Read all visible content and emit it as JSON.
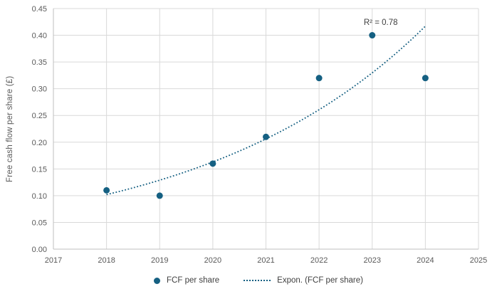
{
  "chart_data": {
    "type": "scatter",
    "title": "",
    "xlabel": "",
    "ylabel": "Free cash flow per share (£)",
    "xlim": [
      2017,
      2025
    ],
    "ylim": [
      0,
      0.45
    ],
    "grid": true,
    "legend_position": "bottom",
    "x_tick_values": [
      2017,
      2018,
      2019,
      2020,
      2021,
      2022,
      2023,
      2024,
      2025
    ],
    "x_tick_labels": [
      "2017",
      "2018",
      "2019",
      "2020",
      "2021",
      "2022",
      "2023",
      "2024",
      "2025"
    ],
    "y_tick_values": [
      0,
      0.05,
      0.1,
      0.15,
      0.2,
      0.25,
      0.3,
      0.35,
      0.4,
      0.45
    ],
    "y_tick_labels": [
      "0.00",
      "0.05",
      "0.10",
      "0.15",
      "0.20",
      "0.25",
      "0.30",
      "0.35",
      "0.40",
      "0.45"
    ],
    "x": [
      2018,
      2019,
      2020,
      2021,
      2022,
      2023,
      2024
    ],
    "series": [
      {
        "name": "FCF per share",
        "values": [
          0.11,
          0.1,
          0.16,
          0.21,
          0.32,
          0.4,
          0.32
        ]
      }
    ],
    "trendline": {
      "name": "Expon. (FCF per share)",
      "fit": "exponential",
      "start": {
        "x": 2018,
        "y": 0.102
      },
      "end": {
        "x": 2024,
        "y": 0.417
      }
    },
    "annotation": {
      "text": "R² = 0.78",
      "x": 2023.16,
      "y": 0.425
    },
    "colors": {
      "series": "#156082",
      "gridline": "#d9d9d9",
      "axis_line": "#bfbfbf",
      "tick_text": "#595959",
      "annotation_text": "#404040"
    }
  }
}
